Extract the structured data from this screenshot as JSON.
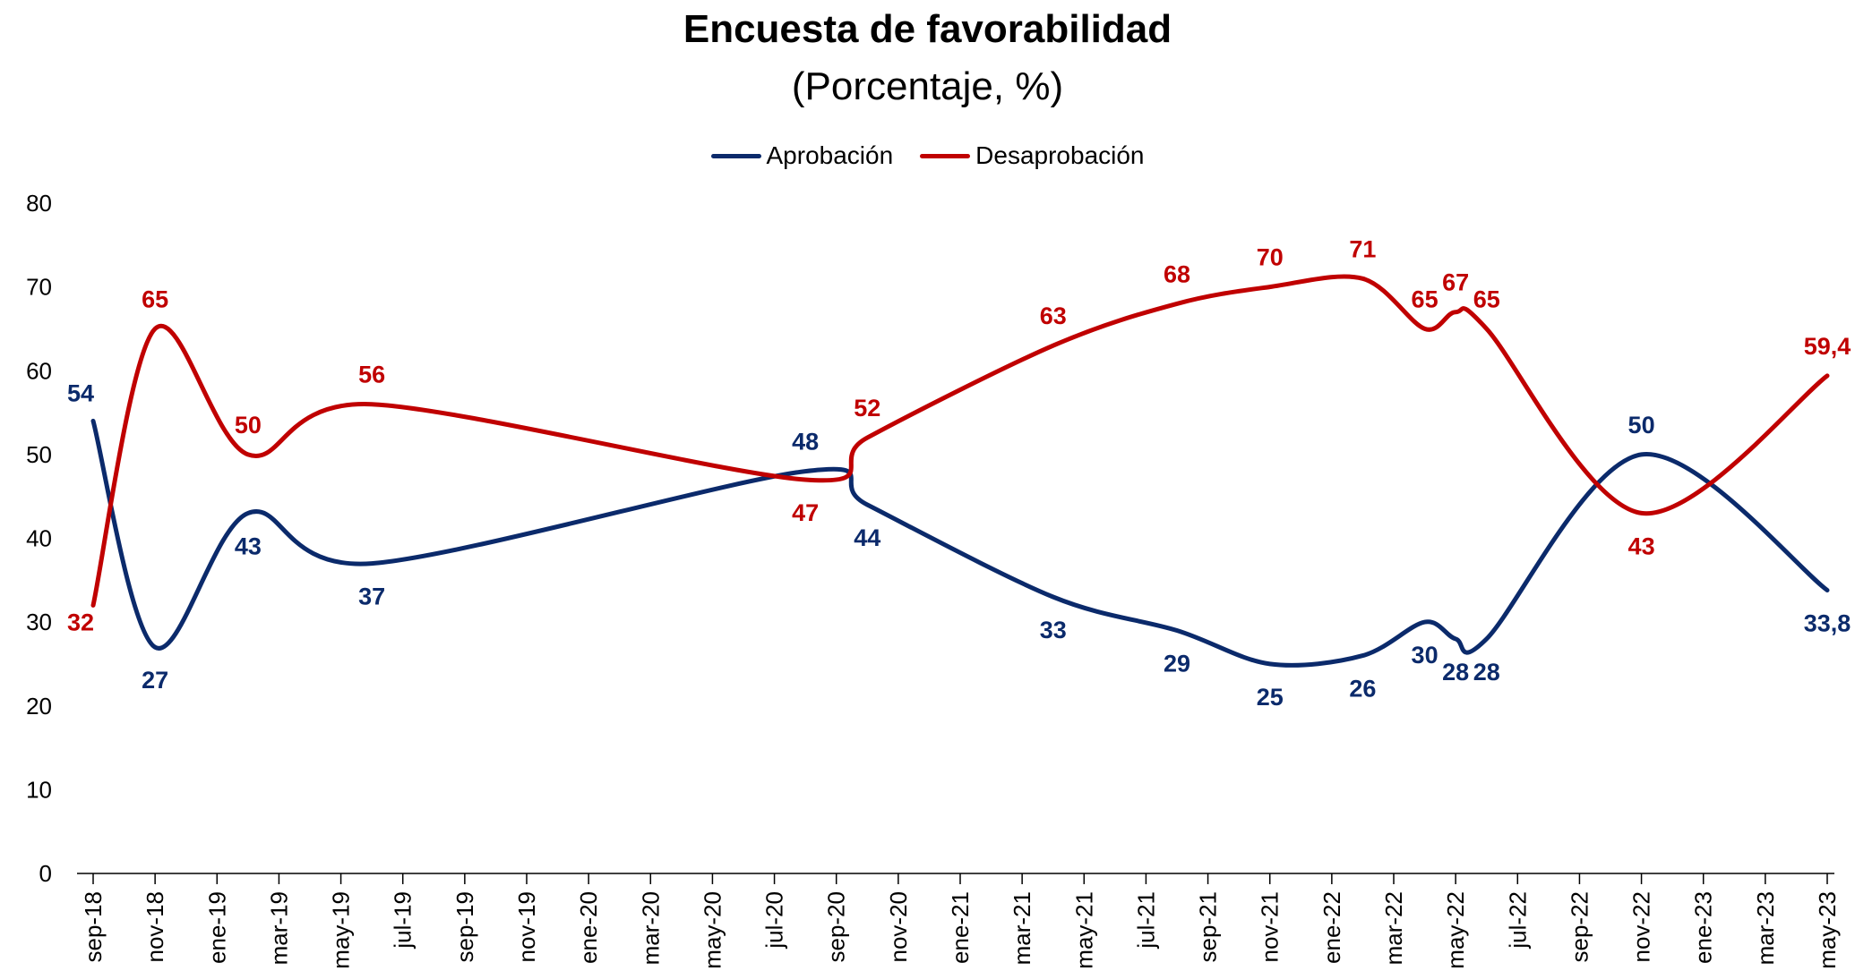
{
  "title": "Encuesta de favorabilidad",
  "subtitle": "(Porcentaje, %)",
  "colors": {
    "aprobacion": "#0b2a6b",
    "desaprobacion": "#c00000"
  },
  "chart_data": {
    "type": "line",
    "title": "Encuesta de favorabilidad",
    "subtitle": "(Porcentaje, %)",
    "xlabel": "",
    "ylabel": "",
    "ylim": [
      0,
      80
    ],
    "yticks": [
      0,
      10,
      20,
      30,
      40,
      50,
      60,
      70,
      80
    ],
    "grid": false,
    "legend_position": "top-center",
    "xticks": [
      "sep-18",
      "nov-18",
      "ene-19",
      "mar-19",
      "may-19",
      "jul-19",
      "sep-19",
      "nov-19",
      "ene-20",
      "mar-20",
      "may-20",
      "jul-20",
      "sep-20",
      "nov-20",
      "ene-21",
      "mar-21",
      "may-21",
      "jul-21",
      "sep-21",
      "nov-21",
      "ene-22",
      "mar-22",
      "may-22",
      "jul-22",
      "sep-22",
      "nov-22",
      "ene-23",
      "mar-23",
      "may-23"
    ],
    "series": [
      {
        "name": "Aprobación",
        "points": [
          {
            "x": "sep-18",
            "y": 54,
            "label": "54"
          },
          {
            "x": "nov-18",
            "y": 27,
            "label": "27"
          },
          {
            "x": "feb-19",
            "y": 43,
            "label": "43"
          },
          {
            "x": "jun-19",
            "y": 37,
            "label": "37"
          },
          {
            "x": "ago-20",
            "y": 48,
            "label": "48"
          },
          {
            "x": "oct-20",
            "y": 44,
            "label": "44"
          },
          {
            "x": "abr-21",
            "y": 33,
            "label": "33"
          },
          {
            "x": "ago-21",
            "y": 29,
            "label": "29"
          },
          {
            "x": "nov-21",
            "y": 25,
            "label": "25"
          },
          {
            "x": "feb-22",
            "y": 26,
            "label": "26"
          },
          {
            "x": "abr-22",
            "y": 30,
            "label": "30"
          },
          {
            "x": "may-22",
            "y": 28,
            "label": "28"
          },
          {
            "x": "jun-22",
            "y": 28,
            "label": "28"
          },
          {
            "x": "nov-22",
            "y": 50,
            "label": "50"
          },
          {
            "x": "may-23",
            "y": 33.8,
            "label": "33,8"
          }
        ]
      },
      {
        "name": "Desaprobación",
        "points": [
          {
            "x": "sep-18",
            "y": 32,
            "label": "32"
          },
          {
            "x": "nov-18",
            "y": 65,
            "label": "65"
          },
          {
            "x": "feb-19",
            "y": 50,
            "label": "50"
          },
          {
            "x": "jun-19",
            "y": 56,
            "label": "56"
          },
          {
            "x": "ago-20",
            "y": 47,
            "label": "47"
          },
          {
            "x": "oct-20",
            "y": 52,
            "label": "52"
          },
          {
            "x": "abr-21",
            "y": 63,
            "label": "63"
          },
          {
            "x": "ago-21",
            "y": 68,
            "label": "68"
          },
          {
            "x": "nov-21",
            "y": 70,
            "label": "70"
          },
          {
            "x": "feb-22",
            "y": 71,
            "label": "71"
          },
          {
            "x": "abr-22",
            "y": 65,
            "label": "65"
          },
          {
            "x": "may-22",
            "y": 67,
            "label": "67"
          },
          {
            "x": "jun-22",
            "y": 65,
            "label": "65"
          },
          {
            "x": "nov-22",
            "y": 43,
            "label": "43"
          },
          {
            "x": "may-23",
            "y": 59.4,
            "label": "59,4"
          }
        ]
      }
    ]
  }
}
